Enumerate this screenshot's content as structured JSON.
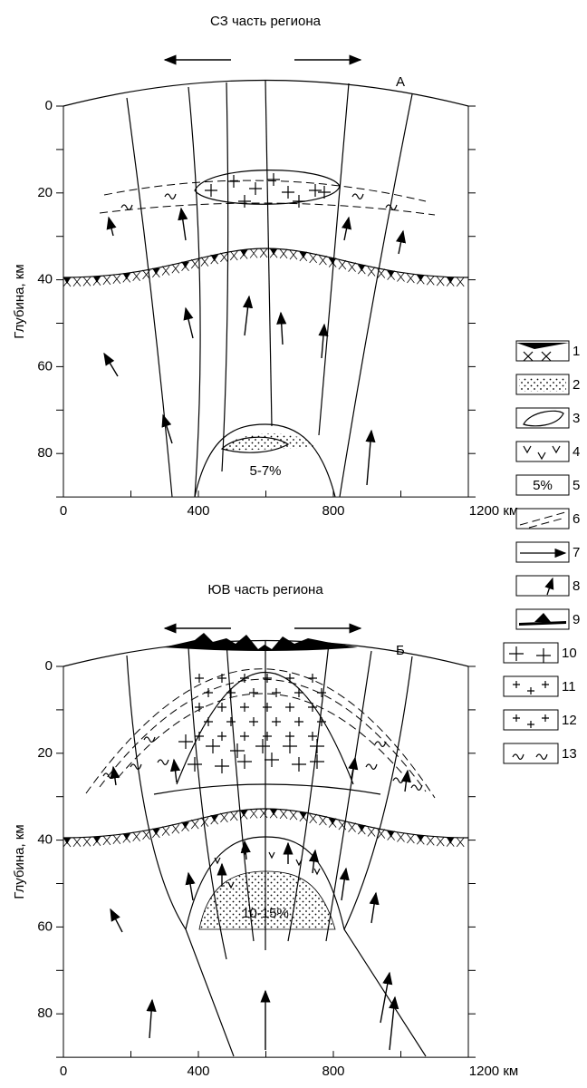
{
  "panels": [
    {
      "title": "СЗ часть региона",
      "letter": "А",
      "y_axis_label": "Глубина, км",
      "y_ticks": [
        "0",
        "20",
        "40",
        "60",
        "80"
      ],
      "x_ticks": [
        "0",
        "400",
        "800",
        "1200 км"
      ],
      "note": "5-7%"
    },
    {
      "title": "ЮВ часть региона",
      "letter": "Б",
      "y_axis_label": "Глубина, км",
      "y_ticks": [
        "0",
        "20",
        "40",
        "60",
        "80"
      ],
      "x_ticks": [
        "0",
        "400",
        "800",
        "1200 км"
      ],
      "note": "10-15%"
    }
  ],
  "legend": [
    {
      "number": "1"
    },
    {
      "number": "2"
    },
    {
      "number": "3"
    },
    {
      "number": "4"
    },
    {
      "number": "5",
      "box_text": "5%"
    },
    {
      "number": "6"
    },
    {
      "number": "7"
    },
    {
      "number": "8"
    },
    {
      "number": "9"
    },
    {
      "number": "10"
    },
    {
      "number": "11"
    },
    {
      "number": "12"
    },
    {
      "number": "13"
    }
  ]
}
